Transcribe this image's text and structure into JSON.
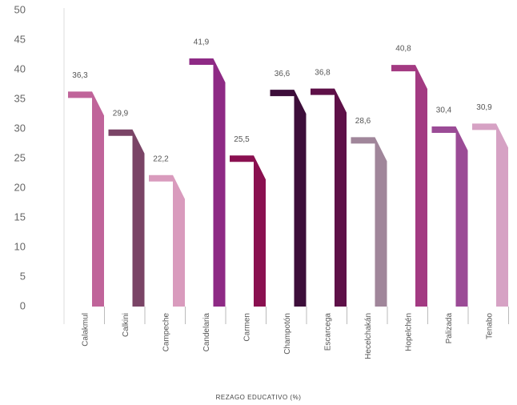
{
  "chart_data": {
    "type": "bar",
    "x_label": "REZAGO EDUCATIVO (%)",
    "categories": [
      "Calakmul",
      "Calkini",
      "Campeche",
      "Candelaria",
      "Carmen",
      "Champotón",
      "Escarcega",
      "Hecelchakán",
      "Hopelchén",
      "Palizada",
      "Tenabo"
    ],
    "values": [
      36.3,
      29.9,
      22.2,
      41.9,
      25.5,
      36.6,
      36.8,
      28.6,
      40.8,
      30.4,
      30.9
    ],
    "value_labels": [
      "36,3",
      "29,9",
      "22,2",
      "41,9",
      "25,5",
      "36,6",
      "36,8",
      "28,6",
      "40,8",
      "30,4",
      "30,9"
    ],
    "colors": [
      "#c0649a",
      "#7a4466",
      "#d99bbd",
      "#8e2a85",
      "#8a1050",
      "#3d0e3a",
      "#5e1048",
      "#a0869a",
      "#a33a82",
      "#9b4b96",
      "#d6a2c4"
    ],
    "ylim": [
      0,
      50
    ],
    "yticks": [
      0,
      5,
      10,
      15,
      20,
      25,
      30,
      35,
      40,
      45,
      50
    ]
  }
}
